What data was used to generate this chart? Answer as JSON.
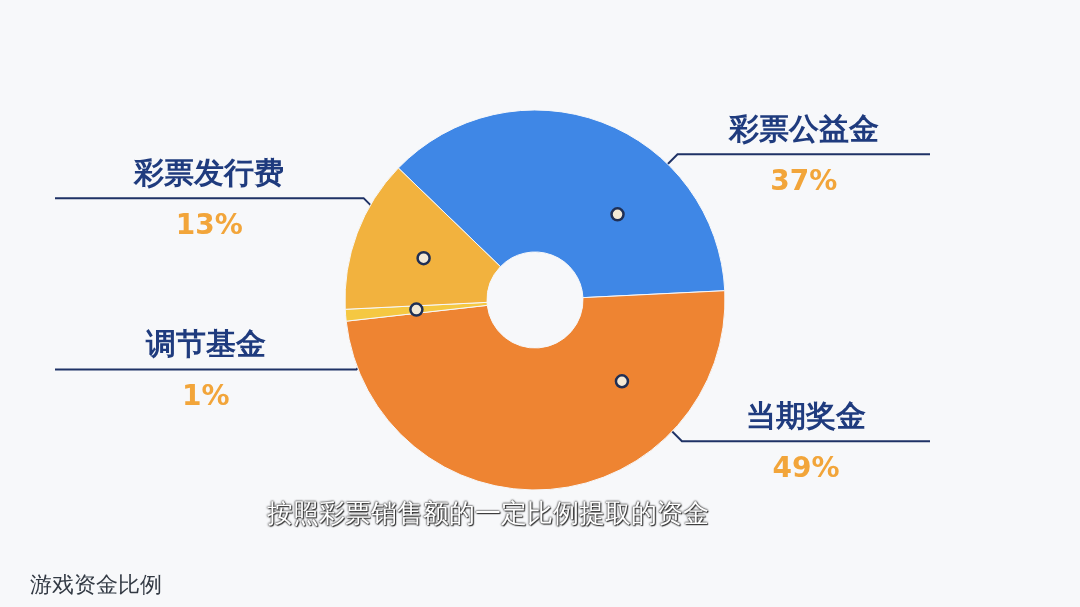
{
  "chart_data": {
    "type": "donut",
    "categories": [
      "彩票公益金",
      "当期奖金",
      "调节基金",
      "彩票发行费"
    ],
    "values": [
      37,
      49,
      1,
      13
    ],
    "colors": [
      "#3f87e6",
      "#ee8432",
      "#f5c842",
      "#f2b23e"
    ],
    "value_labels": [
      "37%",
      "49%",
      "1%",
      "13%"
    ],
    "annotations": [
      "按照彩票销售额的一定比例提取的资金",
      "游戏资金比例"
    ]
  }
}
